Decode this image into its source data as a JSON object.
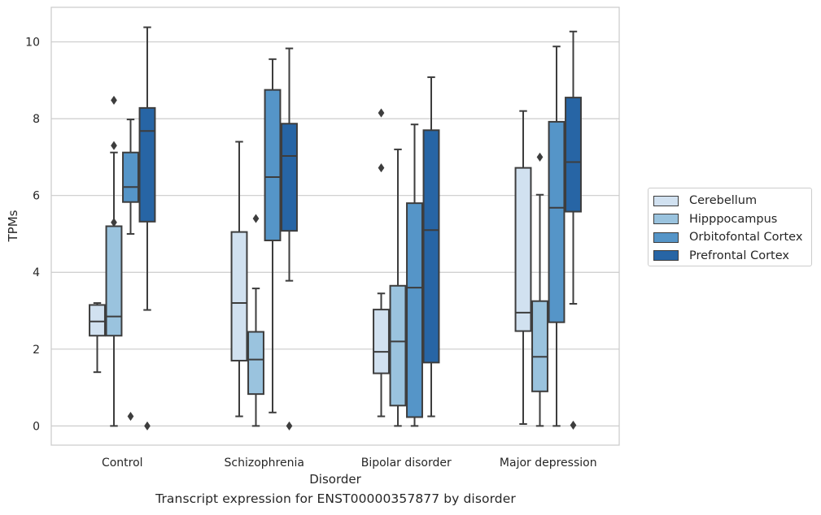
{
  "caption": "Transcript expression for ENST00000357877 by disorder",
  "chart_data": {
    "type": "box",
    "xlabel": "Disorder",
    "ylabel": "TPMs",
    "ylim": [
      -0.5,
      10.9
    ],
    "yticks": [
      0,
      2,
      4,
      6,
      8,
      10
    ],
    "grid": "horizontal",
    "legend_position": "right",
    "categories": [
      "Control",
      "Schizophrenia",
      "Bipolar disorder",
      "Major depression"
    ],
    "series": [
      {
        "name": "Cerebellum",
        "color": "#d1e1f0",
        "boxes": [
          {
            "whisker_low": 1.4,
            "q1": 2.35,
            "median": 2.72,
            "q3": 3.15,
            "whisker_high": 3.2,
            "outliers": []
          },
          {
            "whisker_low": 0.25,
            "q1": 1.7,
            "median": 3.2,
            "q3": 5.05,
            "whisker_high": 7.4,
            "outliers": []
          },
          {
            "whisker_low": 0.25,
            "q1": 1.37,
            "median": 1.93,
            "q3": 3.03,
            "whisker_high": 3.45,
            "outliers": [
              6.72,
              8.15
            ]
          },
          {
            "whisker_low": 0.05,
            "q1": 2.47,
            "median": 2.95,
            "q3": 6.72,
            "whisker_high": 8.2,
            "outliers": []
          }
        ]
      },
      {
        "name": "Hipppocampus",
        "color": "#9ac3de",
        "boxes": [
          {
            "whisker_low": 0.0,
            "q1": 2.35,
            "median": 2.85,
            "q3": 5.2,
            "whisker_high": 7.12,
            "outliers": [
              5.3,
              7.3,
              8.48
            ]
          },
          {
            "whisker_low": 0.0,
            "q1": 0.83,
            "median": 1.73,
            "q3": 2.45,
            "whisker_high": 3.58,
            "outliers": [
              5.4
            ]
          },
          {
            "whisker_low": 0.0,
            "q1": 0.53,
            "median": 2.2,
            "q3": 3.65,
            "whisker_high": 7.2,
            "outliers": []
          },
          {
            "whisker_low": 0.0,
            "q1": 0.9,
            "median": 1.8,
            "q3": 3.25,
            "whisker_high": 6.02,
            "outliers": [
              7.0
            ]
          }
        ]
      },
      {
        "name": "Orbitofontal Cortex",
        "color": "#5595c8",
        "boxes": [
          {
            "whisker_low": 5.0,
            "q1": 5.83,
            "median": 6.22,
            "q3": 7.12,
            "whisker_high": 7.98,
            "outliers": [
              0.25
            ]
          },
          {
            "whisker_low": 0.35,
            "q1": 4.83,
            "median": 6.48,
            "q3": 8.75,
            "whisker_high": 9.55,
            "outliers": []
          },
          {
            "whisker_low": 0.0,
            "q1": 0.23,
            "median": 3.6,
            "q3": 5.8,
            "whisker_high": 7.85,
            "outliers": []
          },
          {
            "whisker_low": 0.0,
            "q1": 2.7,
            "median": 5.68,
            "q3": 7.92,
            "whisker_high": 9.88,
            "outliers": []
          }
        ]
      },
      {
        "name": "Prefrontal Cortex",
        "color": "#2765a5",
        "boxes": [
          {
            "whisker_low": 3.02,
            "q1": 5.32,
            "median": 7.68,
            "q3": 8.28,
            "whisker_high": 10.38,
            "outliers": [
              0.0
            ]
          },
          {
            "whisker_low": 3.78,
            "q1": 5.08,
            "median": 7.03,
            "q3": 7.87,
            "whisker_high": 9.83,
            "outliers": [
              0.0
            ]
          },
          {
            "whisker_low": 0.25,
            "q1": 1.65,
            "median": 5.1,
            "q3": 7.7,
            "whisker_high": 9.08,
            "outliers": []
          },
          {
            "whisker_low": 3.18,
            "q1": 5.58,
            "median": 6.87,
            "q3": 8.55,
            "whisker_high": 10.27,
            "outliers": [
              0.02
            ]
          }
        ]
      }
    ]
  }
}
